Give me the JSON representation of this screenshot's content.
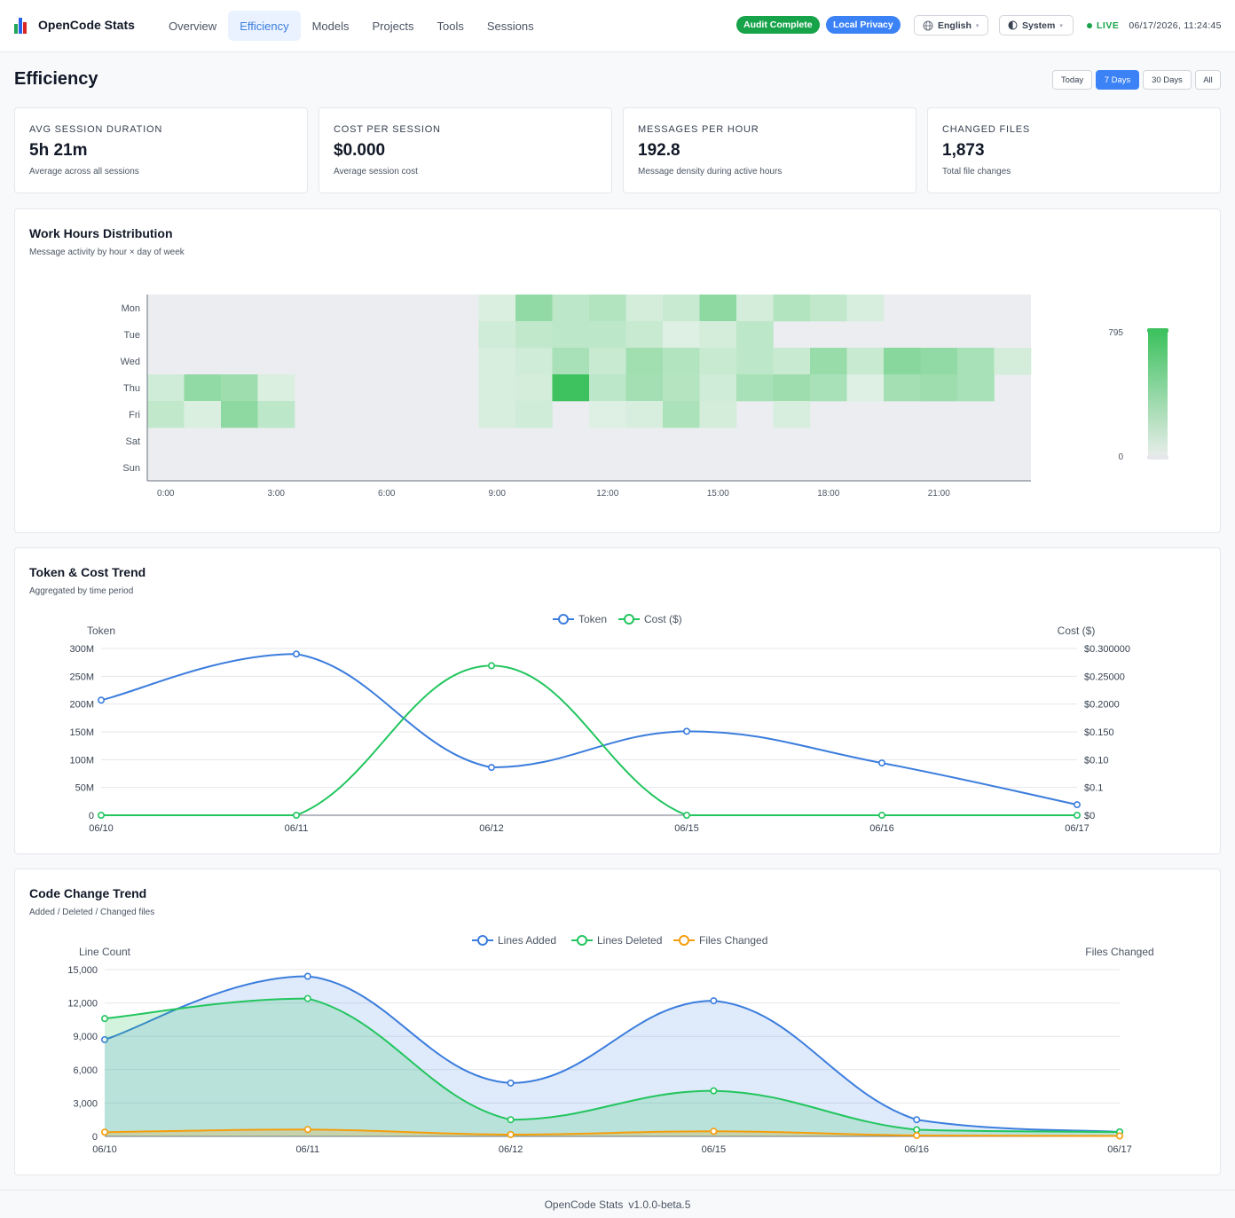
{
  "app": {
    "name": "OpenCode Stats",
    "logo_icon": "bar-chart-logo-icon",
    "nav": [
      {
        "label": "Overview",
        "active": false
      },
      {
        "label": "Efficiency",
        "active": true
      },
      {
        "label": "Models",
        "active": false
      },
      {
        "label": "Projects",
        "active": false
      },
      {
        "label": "Tools",
        "active": false
      },
      {
        "label": "Sessions",
        "active": false
      }
    ],
    "badges": {
      "audit": "Audit Complete",
      "privacy": "Local Privacy"
    },
    "language": {
      "label": "English",
      "icon": "globe-icon"
    },
    "theme": {
      "label": "System",
      "icon": "half-moon-icon"
    },
    "live_label": "LIVE",
    "timestamp": "06/17/2026, 11:24:45",
    "colors": {
      "accent": "#3b82f6",
      "green": "#22c55e",
      "live": "#16a34a",
      "orange": "#f59e0b"
    }
  },
  "page": {
    "title": "Efficiency",
    "ranges": [
      {
        "label": "Today",
        "active": false
      },
      {
        "label": "7 Days",
        "active": true
      },
      {
        "label": "30 Days",
        "active": false
      },
      {
        "label": "All",
        "active": false
      }
    ]
  },
  "stats": [
    {
      "label": "AVG SESSION DURATION",
      "value": "5h 21m",
      "desc": "Average across all sessions"
    },
    {
      "label": "COST PER SESSION",
      "value": "$0.000",
      "desc": "Average session cost"
    },
    {
      "label": "MESSAGES PER HOUR",
      "value": "192.8",
      "desc": "Message density during active hours"
    },
    {
      "label": "CHANGED FILES",
      "value": "1,873",
      "desc": "Total file changes"
    }
  ],
  "heatmap": {
    "title": "Work Hours Distribution",
    "subtitle": "Message activity by hour × day of week"
  },
  "token_chart": {
    "title": "Token & Cost Trend",
    "subtitle": "Aggregated by time period"
  },
  "code_chart": {
    "title": "Code Change Trend",
    "subtitle": "Added / Deleted / Changed files"
  },
  "footer": {
    "name": "OpenCode Stats",
    "version": "v1.0.0-beta.5"
  },
  "chart_data": [
    {
      "type": "heatmap",
      "days": [
        "Mon",
        "Tue",
        "Wed",
        "Thu",
        "Fri",
        "Sat",
        "Sun"
      ],
      "hour_labels": [
        "0:00",
        "3:00",
        "6:00",
        "9:00",
        "12:00",
        "15:00",
        "18:00",
        "21:00"
      ],
      "visual_map": {
        "min": 0,
        "max": 795,
        "labels": [
          "795",
          "0"
        ]
      },
      "values": [
        [
          0,
          0,
          0,
          0,
          0,
          0,
          0,
          0,
          0,
          60,
          400,
          200,
          250,
          100,
          150,
          420,
          100,
          250,
          180,
          80,
          0,
          0,
          0,
          0
        ],
        [
          0,
          0,
          0,
          0,
          0,
          0,
          0,
          0,
          0,
          120,
          180,
          200,
          200,
          150,
          50,
          100,
          200,
          0,
          0,
          0,
          0,
          0,
          0,
          0
        ],
        [
          0,
          0,
          0,
          0,
          0,
          0,
          0,
          0,
          0,
          80,
          120,
          300,
          150,
          330,
          250,
          150,
          200,
          150,
          380,
          150,
          450,
          400,
          300,
          100
        ],
        [
          120,
          400,
          350,
          60,
          0,
          0,
          0,
          0,
          0,
          80,
          100,
          795,
          200,
          320,
          240,
          120,
          300,
          350,
          300,
          50,
          320,
          350,
          300,
          0
        ],
        [
          180,
          60,
          420,
          200,
          0,
          0,
          0,
          0,
          0,
          80,
          120,
          0,
          50,
          80,
          280,
          100,
          0,
          80,
          0,
          0,
          0,
          0,
          0,
          0
        ],
        [
          0,
          0,
          0,
          0,
          0,
          0,
          0,
          0,
          0,
          0,
          0,
          0,
          0,
          0,
          0,
          0,
          0,
          0,
          0,
          0,
          0,
          0,
          0,
          0
        ],
        [
          0,
          0,
          0,
          0,
          0,
          0,
          0,
          0,
          0,
          0,
          0,
          0,
          0,
          0,
          0,
          0,
          0,
          0,
          0,
          0,
          0,
          0,
          0,
          0
        ]
      ]
    },
    {
      "type": "line",
      "categories": [
        "06/10",
        "06/11",
        "06/12",
        "06/15",
        "06/16",
        "06/17"
      ],
      "legend": [
        "Token",
        "Cost ($)"
      ],
      "y_left": {
        "label": "Token",
        "min": 0,
        "max": 300000000,
        "ticks": [
          "0",
          "50M",
          "100M",
          "150M",
          "200M",
          "250M",
          "300M"
        ]
      },
      "y_right": {
        "label": "Cost ($)",
        "min": 0,
        "max": 0.3,
        "ticks": [
          "$0",
          "$0.1",
          "$0.10",
          "$0.150",
          "$0.2000",
          "$0.25000",
          "$0.300000"
        ]
      },
      "series": [
        {
          "name": "Token",
          "axis": "left",
          "color": "#3b7ddd",
          "values": [
            207000000,
            290000000,
            86000000,
            151000000,
            94000000,
            19000000
          ]
        },
        {
          "name": "Cost ($)",
          "axis": "right",
          "color": "#22c55e",
          "values": [
            0,
            0,
            0.269,
            0,
            0,
            0
          ]
        }
      ]
    },
    {
      "type": "area",
      "categories": [
        "06/10",
        "06/11",
        "06/12",
        "06/15",
        "06/16",
        "06/17"
      ],
      "legend": [
        "Lines Added",
        "Lines Deleted",
        "Files Changed"
      ],
      "y_left": {
        "label": "Line Count",
        "min": 0,
        "max": 15000,
        "ticks": [
          "0",
          "3,000",
          "6,000",
          "9,000",
          "12,000",
          "15,000"
        ]
      },
      "y_right": {
        "label": "Files Changed"
      },
      "series": [
        {
          "name": "Lines Added",
          "color": "#3b7ddd",
          "values": [
            8700,
            14400,
            4800,
            12200,
            1500,
            400
          ]
        },
        {
          "name": "Lines Deleted",
          "color": "#22c55e",
          "values": [
            10600,
            12400,
            1500,
            4100,
            600,
            400
          ]
        },
        {
          "name": "Files Changed",
          "color": "#f59e0b",
          "values": [
            380,
            620,
            160,
            460,
            80,
            40
          ]
        }
      ]
    }
  ]
}
